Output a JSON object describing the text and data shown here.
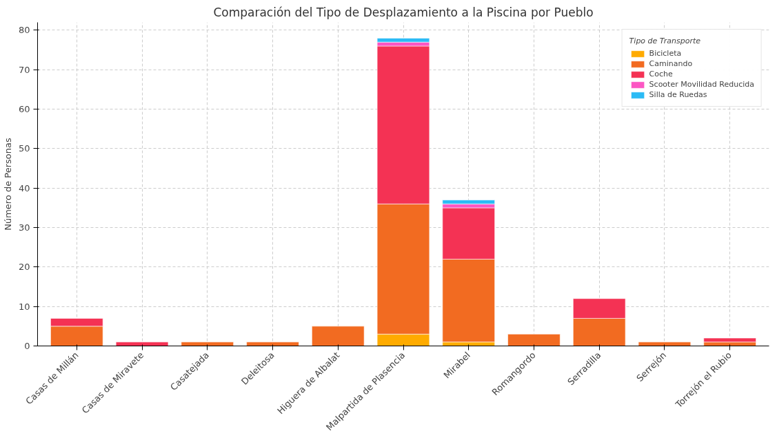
{
  "chart_data": {
    "type": "bar",
    "stacked": true,
    "title": "Comparación del Tipo de Desplazamiento a la Piscina por Pueblo",
    "ylabel": "Número de Personas",
    "legend_title": "Tipo de Transporte",
    "legend": "top right",
    "grid": true,
    "categories": [
      "Casas de Millán",
      "Casas de Miravete",
      "Casatejada",
      "Deleitosa",
      "Higuera de Albalat",
      "Malpartida de Plasencia",
      "Mirabel",
      "Romangordo",
      "Serradilla",
      "Serrejón",
      "Torrejón el Rubio"
    ],
    "ylim": [
      0,
      82
    ],
    "yticks": [
      0,
      10,
      20,
      30,
      40,
      50,
      60,
      70,
      80
    ],
    "series": [
      {
        "name": "Bicicleta",
        "color": "#ffab00",
        "values": [
          null,
          null,
          null,
          null,
          null,
          3,
          1,
          null,
          null,
          null,
          null
        ]
      },
      {
        "name": "Caminando",
        "color": "#f26b21",
        "values": [
          5,
          null,
          1,
          1,
          5,
          33,
          21,
          3,
          7,
          1,
          1
        ]
      },
      {
        "name": "Coche",
        "color": "#f43254",
        "values": [
          2,
          1,
          null,
          null,
          null,
          40,
          13,
          null,
          5,
          null,
          1
        ]
      },
      {
        "name": "Scooter Movilidad Reducida",
        "color": "#fc56c3",
        "values": [
          null,
          null,
          null,
          null,
          null,
          1,
          1,
          null,
          null,
          null,
          null
        ]
      },
      {
        "name": "Silla de Ruedas",
        "color": "#2bbbf5",
        "values": [
          null,
          null,
          null,
          null,
          null,
          1,
          1,
          null,
          null,
          null,
          null
        ]
      }
    ]
  }
}
